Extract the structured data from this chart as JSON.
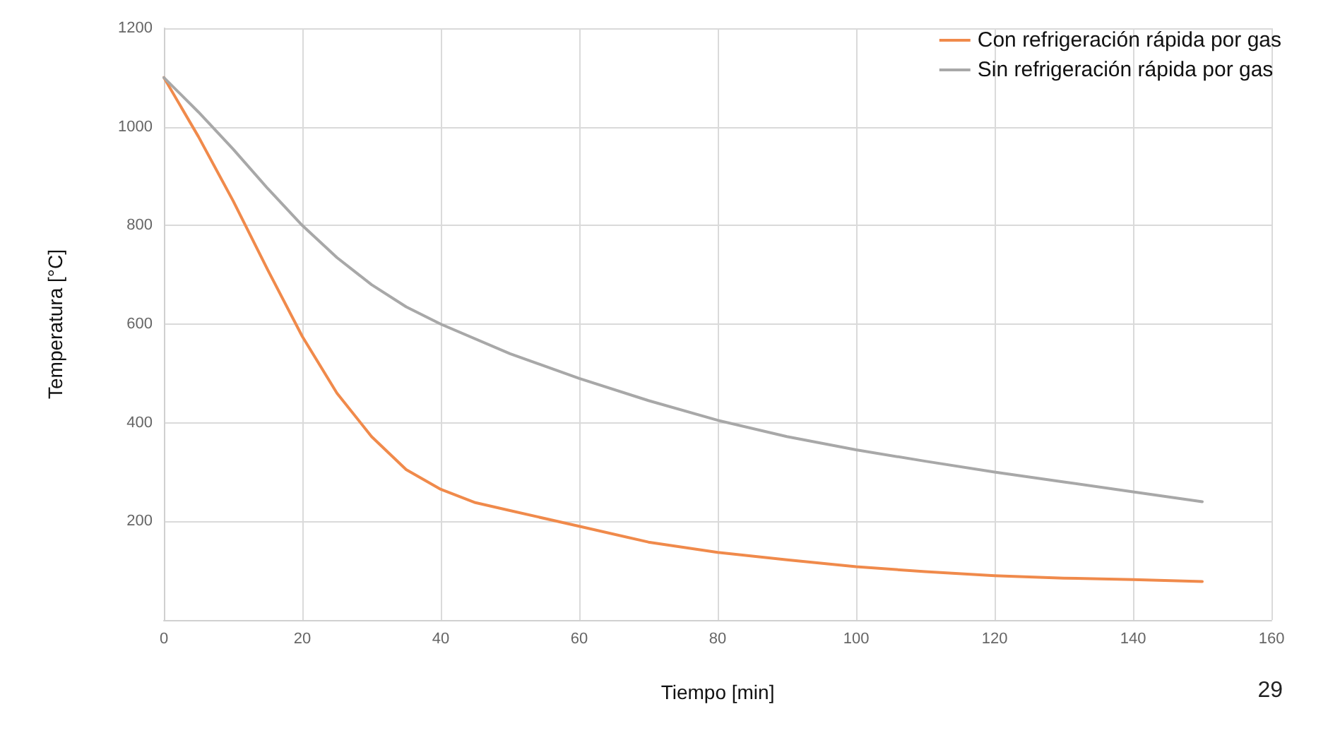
{
  "chart_data": {
    "type": "line",
    "xlabel": "Tiempo [min]",
    "ylabel": "Temperatura [°C]",
    "xlim": [
      0,
      160
    ],
    "xticks": [
      0,
      20,
      40,
      60,
      80,
      100,
      120,
      140,
      160
    ],
    "ylim": [
      0,
      1200
    ],
    "yticks": [
      {
        "value": 0,
        "label": null
      },
      200,
      400,
      600,
      800,
      1000,
      1200
    ],
    "grid": true,
    "legend": "top right",
    "marker": "none",
    "line_style": "solid",
    "annotations": [
      "29"
    ],
    "series": [
      {
        "name": "Con refrigeración rápida por gas",
        "color": "#f08a4b",
        "x": [
          0,
          5,
          10,
          15,
          20,
          25,
          30,
          35,
          40,
          45,
          50,
          60,
          70,
          80,
          90,
          100,
          110,
          120,
          130,
          140,
          150
        ],
        "values": [
          1100,
          980,
          850,
          710,
          575,
          460,
          372,
          305,
          265,
          238,
          222,
          190,
          158,
          137,
          122,
          108,
          98,
          90,
          85,
          82,
          78
        ]
      },
      {
        "name": "Sin refrigeración rápida por gas",
        "color": "#a8a8a8",
        "x": [
          0,
          5,
          10,
          15,
          20,
          25,
          30,
          35,
          40,
          50,
          60,
          70,
          80,
          90,
          100,
          110,
          120,
          130,
          140,
          150
        ],
        "values": [
          1100,
          1030,
          955,
          875,
          800,
          735,
          680,
          635,
          600,
          540,
          490,
          445,
          405,
          372,
          345,
          322,
          300,
          280,
          260,
          240
        ]
      }
    ]
  }
}
